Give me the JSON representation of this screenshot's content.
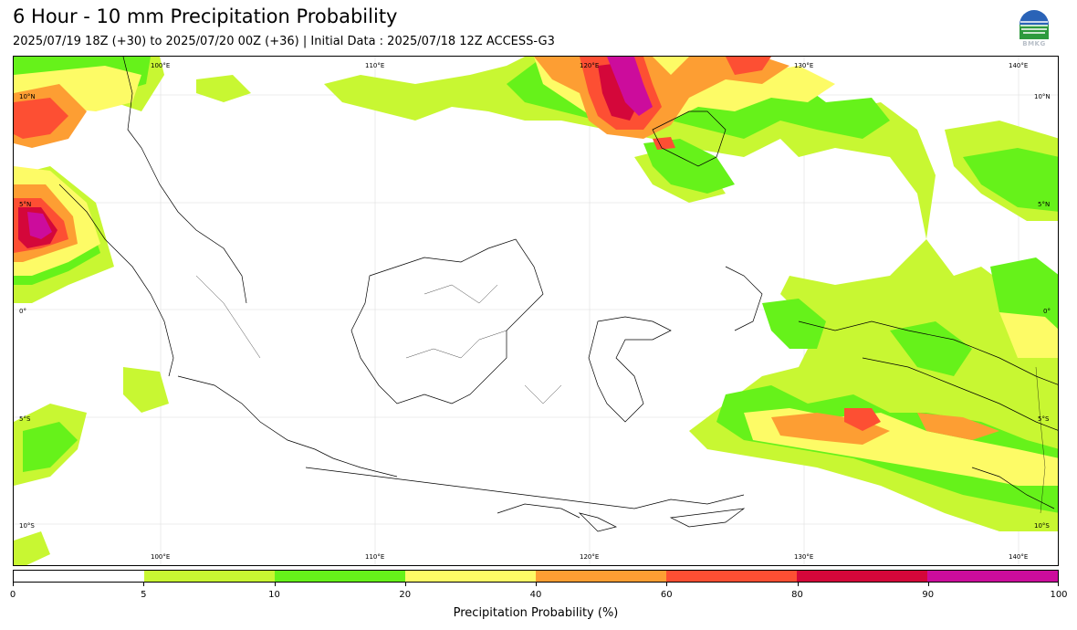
{
  "header": {
    "title": "6 Hour - 10 mm Precipitation Probability",
    "subtitle": "2025/07/19 18Z (+30) to 2025/07/20 00Z (+36) | Initial Data : 2025/07/18 12Z ACCESS-G3",
    "logo_text": "BMKG"
  },
  "map": {
    "lon_labels_top": [
      "100°E",
      "110°E",
      "120°E",
      "130°E",
      "140°E"
    ],
    "lon_labels_bottom": [
      "100°E",
      "110°E",
      "120°E",
      "130°E",
      "140°E"
    ],
    "lat_labels_left": [
      "10°N",
      "5°N",
      "0°",
      "5°S",
      "10°S"
    ],
    "lat_labels_right": [
      "10°N",
      "5°N",
      "0°",
      "5°S",
      "10°S"
    ]
  },
  "colorbar": {
    "ticks": [
      "0",
      "5",
      "10",
      "20",
      "40",
      "60",
      "80",
      "90",
      "100"
    ],
    "colors": [
      "#ffffff",
      "#c8f732",
      "#66f21a",
      "#fdfb66",
      "#fd9e33",
      "#fd4f33",
      "#d4073a",
      "#cc0c9c"
    ],
    "label": "Precipitation Probability (%)"
  }
}
